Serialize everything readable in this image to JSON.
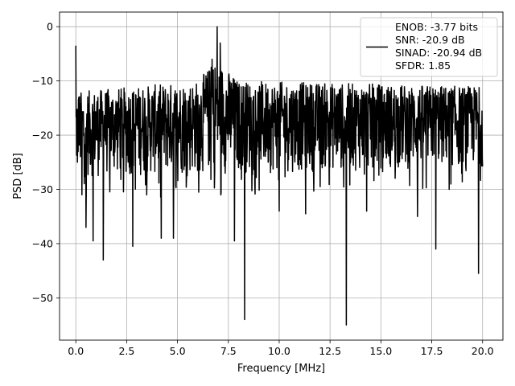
{
  "chart_data": {
    "type": "line",
    "title": "",
    "xlabel": "Frequency [MHz]",
    "ylabel": "PSD [dB]",
    "xlim": [
      -0.8,
      21.0
    ],
    "ylim": [
      -57.8,
      2.7
    ],
    "xticks": [
      0.0,
      2.5,
      5.0,
      7.5,
      10.0,
      12.5,
      15.0,
      17.5,
      20.0
    ],
    "xtick_labels": [
      "0.0",
      "2.5",
      "5.0",
      "7.5",
      "10.0",
      "12.5",
      "15.0",
      "17.5",
      "20.0"
    ],
    "yticks": [
      0,
      -10,
      -20,
      -30,
      -40,
      -50
    ],
    "ytick_labels": [
      "0",
      "−10",
      "−20",
      "−30",
      "−40",
      "−50"
    ],
    "grid": true,
    "legend_position": "top-right",
    "legend_entries": [
      "ENOB: -3.77 bits",
      "SNR: -20.9 dB",
      "SINAD: -20.94 dB",
      "SFDR: 1.85"
    ],
    "series": [
      {
        "color": "#000000",
        "x_start": 0.0,
        "x_end": 20.0,
        "noise_mean": -17,
        "noise_envelope_top": [
          [
            0,
            -12
          ],
          [
            6.0,
            -10
          ],
          [
            6.9,
            -6
          ],
          [
            8.0,
            -10
          ],
          [
            20,
            -11
          ]
        ],
        "noise_envelope_bottom": [
          [
            0,
            -28
          ],
          [
            20,
            -26
          ]
        ],
        "features": [
          {
            "x": 0.0,
            "y": -3.5
          },
          {
            "x": 0.08,
            "y": -25
          },
          {
            "x": 0.15,
            "y": -13
          },
          {
            "x": 0.3,
            "y": -31
          },
          {
            "x": 0.5,
            "y": -37
          },
          {
            "x": 0.85,
            "y": -39.5
          },
          {
            "x": 1.35,
            "y": -43
          },
          {
            "x": 2.8,
            "y": -40.5
          },
          {
            "x": 4.2,
            "y": -39
          },
          {
            "x": 4.8,
            "y": -39
          },
          {
            "x": 6.7,
            "y": -6
          },
          {
            "x": 6.95,
            "y": 0
          },
          {
            "x": 7.1,
            "y": -3
          },
          {
            "x": 7.8,
            "y": -39.5
          },
          {
            "x": 8.3,
            "y": -54
          },
          {
            "x": 10.0,
            "y": -34
          },
          {
            "x": 11.3,
            "y": -34.5
          },
          {
            "x": 13.3,
            "y": -55
          },
          {
            "x": 14.3,
            "y": -34
          },
          {
            "x": 16.8,
            "y": -35
          },
          {
            "x": 17.7,
            "y": -41
          },
          {
            "x": 19.8,
            "y": -45.5
          }
        ]
      }
    ]
  }
}
